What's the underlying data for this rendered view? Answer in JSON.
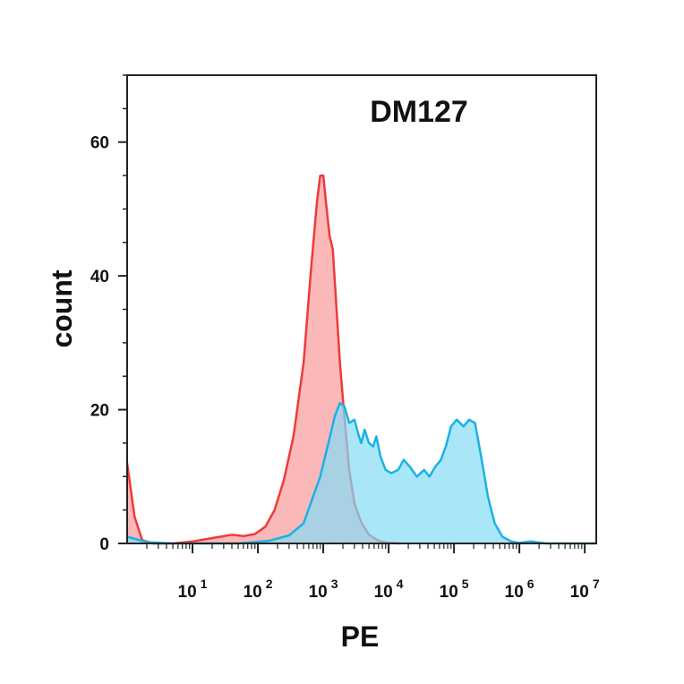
{
  "chart_data": {
    "type": "area",
    "title": "DM127",
    "xlabel": "PE",
    "ylabel": "count",
    "xscale": "log",
    "xlim": [
      1,
      15000000
    ],
    "ylim": [
      0,
      70
    ],
    "y_ticks": [
      {
        "value": 0,
        "label": "0"
      },
      {
        "value": 20,
        "label": "20"
      },
      {
        "value": 40,
        "label": "40"
      },
      {
        "value": 60,
        "label": "60"
      }
    ],
    "x_ticks": [
      {
        "value": 10,
        "base": "10",
        "exp": "1"
      },
      {
        "value": 100,
        "base": "10",
        "exp": "2"
      },
      {
        "value": 1000,
        "base": "10",
        "exp": "3"
      },
      {
        "value": 10000,
        "base": "10",
        "exp": "4"
      },
      {
        "value": 100000,
        "base": "10",
        "exp": "5"
      },
      {
        "value": 1000000,
        "base": "10",
        "exp": "6"
      },
      {
        "value": 10000000,
        "base": "10",
        "exp": "7"
      }
    ],
    "grid": false,
    "legend": "none",
    "series": [
      {
        "color": "#ee3a3a",
        "fill": "#f99a9a",
        "points": [
          [
            1,
            12
          ],
          [
            1.3,
            4
          ],
          [
            1.7,
            0.5
          ],
          [
            2.5,
            0
          ],
          [
            5,
            0
          ],
          [
            10,
            0.3
          ],
          [
            20,
            0.8
          ],
          [
            40,
            1.3
          ],
          [
            60,
            1.1
          ],
          [
            90,
            1.4
          ],
          [
            130,
            2.5
          ],
          [
            180,
            5
          ],
          [
            250,
            9.5
          ],
          [
            350,
            16
          ],
          [
            500,
            27
          ],
          [
            650,
            41
          ],
          [
            800,
            51
          ],
          [
            900,
            55
          ],
          [
            1000,
            55
          ],
          [
            1100,
            51
          ],
          [
            1250,
            46
          ],
          [
            1400,
            44
          ],
          [
            1550,
            37
          ],
          [
            1800,
            27
          ],
          [
            2100,
            19
          ],
          [
            2500,
            11
          ],
          [
            3000,
            6
          ],
          [
            3800,
            3.2
          ],
          [
            5000,
            1.3
          ],
          [
            7000,
            0.4
          ],
          [
            10000,
            0.1
          ],
          [
            15000,
            0
          ]
        ]
      },
      {
        "color": "#1ab2e6",
        "fill": "#85dbf5",
        "points": [
          [
            1,
            1
          ],
          [
            2,
            0.2
          ],
          [
            5,
            0
          ],
          [
            50,
            0
          ],
          [
            150,
            0.4
          ],
          [
            300,
            1.2
          ],
          [
            500,
            3
          ],
          [
            700,
            7
          ],
          [
            900,
            10
          ],
          [
            1200,
            15
          ],
          [
            1500,
            19
          ],
          [
            1800,
            21
          ],
          [
            2100,
            20.5
          ],
          [
            2500,
            18
          ],
          [
            3000,
            18.5
          ],
          [
            3400,
            16.5
          ],
          [
            3800,
            15
          ],
          [
            4300,
            17
          ],
          [
            5000,
            15
          ],
          [
            5800,
            14.5
          ],
          [
            6500,
            16
          ],
          [
            7500,
            13
          ],
          [
            9000,
            11
          ],
          [
            11000,
            10.5
          ],
          [
            14000,
            11
          ],
          [
            17000,
            12.5
          ],
          [
            21000,
            11.5
          ],
          [
            27000,
            10
          ],
          [
            35000,
            11
          ],
          [
            42000,
            10
          ],
          [
            52000,
            11.5
          ],
          [
            63000,
            12.5
          ],
          [
            75000,
            14.5
          ],
          [
            90000,
            17.5
          ],
          [
            110000,
            18.5
          ],
          [
            140000,
            17.5
          ],
          [
            170000,
            18.5
          ],
          [
            210000,
            18
          ],
          [
            260000,
            13
          ],
          [
            330000,
            7
          ],
          [
            420000,
            3
          ],
          [
            550000,
            1
          ],
          [
            750000,
            0.3
          ],
          [
            1000000,
            0.1
          ],
          [
            1500000,
            0.3
          ],
          [
            2500000,
            0
          ],
          [
            15000000,
            0
          ]
        ]
      }
    ]
  }
}
